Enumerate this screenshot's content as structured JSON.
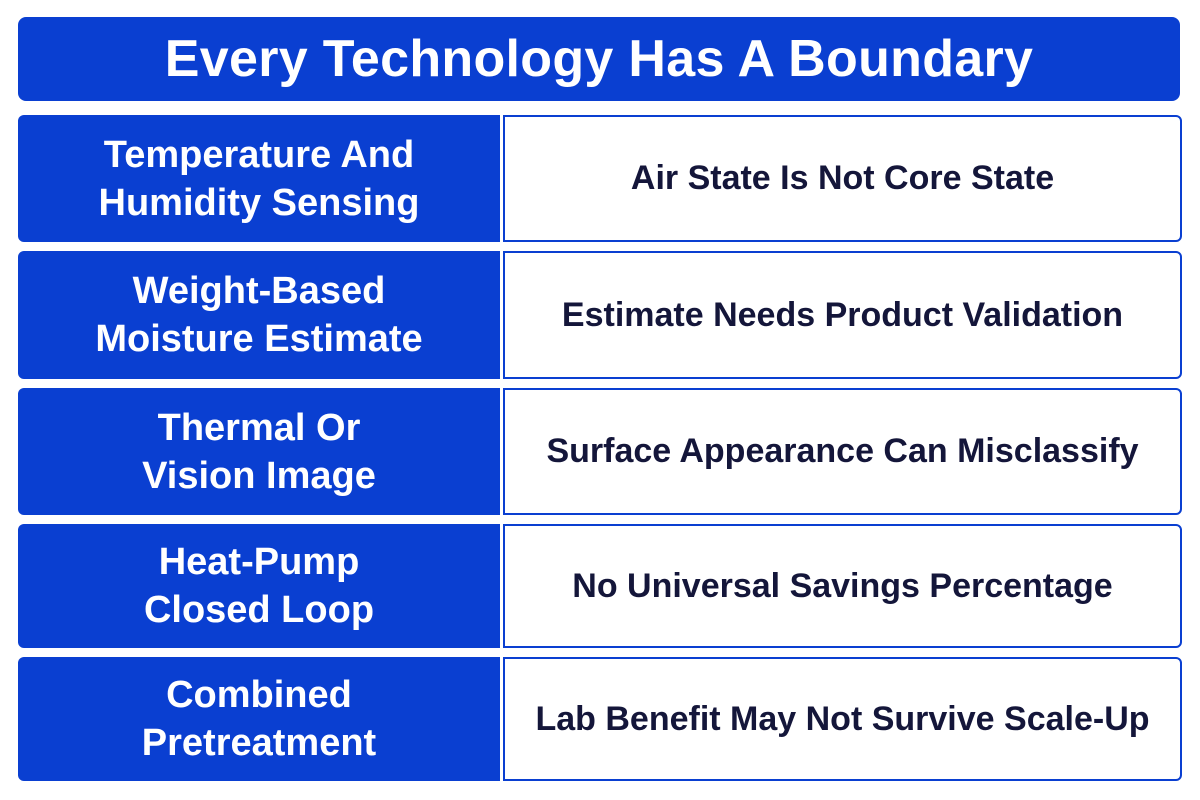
{
  "title": "Every Technology Has A Boundary",
  "rows": [
    {
      "technology": "Temperature And\nHumidity Sensing",
      "boundary": "Air State Is Not Core State"
    },
    {
      "technology": "Weight-Based\nMoisture Estimate",
      "boundary": "Estimate Needs Product Validation"
    },
    {
      "technology": "Thermal Or\nVision Image",
      "boundary": "Surface Appearance Can Misclassify"
    },
    {
      "technology": "Heat-Pump\nClosed Loop",
      "boundary": "No Universal Savings Percentage"
    },
    {
      "technology": "Combined\nPretreatment",
      "boundary": "Lab Benefit May Not Survive Scale-Up"
    }
  ],
  "colors": {
    "accent": "#0a3fd1",
    "text_dark": "#14163a",
    "background": "#ffffff"
  }
}
